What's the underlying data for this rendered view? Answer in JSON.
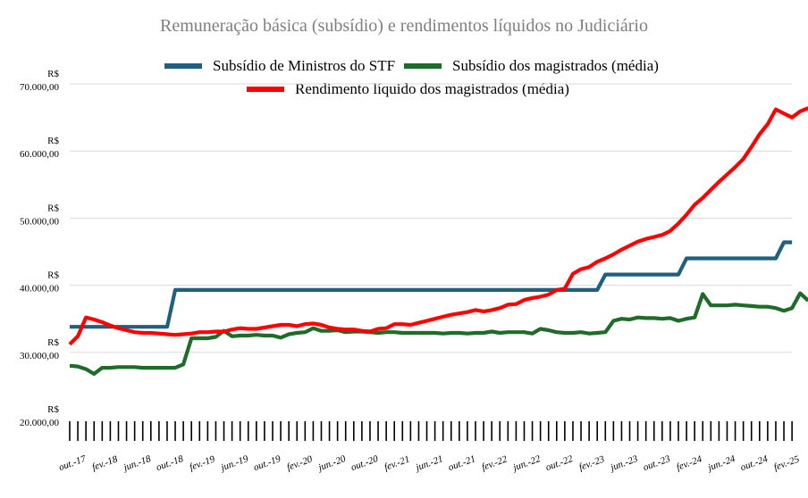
{
  "chart_data": {
    "type": "line",
    "title": "Remuneração básica (subsídio) e rendimentos líquidos no  Judiciário",
    "xlabel": "",
    "ylabel": "",
    "ylim": [
      20000,
      70000
    ],
    "y_ticks": [
      {
        "value": 70000,
        "currency": "R$",
        "amount": "70.000,00"
      },
      {
        "value": 60000,
        "currency": "R$",
        "amount": "60.000,00"
      },
      {
        "value": 50000,
        "currency": "R$",
        "amount": "50.000,00"
      },
      {
        "value": 40000,
        "currency": "R$",
        "amount": "40.000,00"
      },
      {
        "value": 30000,
        "currency": "R$",
        "amount": "30.000,00"
      },
      {
        "value": 20000,
        "currency": "R$",
        "amount": "20.000,00"
      }
    ],
    "x_ticks": [
      {
        "i": 0,
        "label": "out.-17"
      },
      {
        "i": 4,
        "label": "fev.-18"
      },
      {
        "i": 8,
        "label": "jun.-18"
      },
      {
        "i": 12,
        "label": "out.-18"
      },
      {
        "i": 16,
        "label": "fev.-19"
      },
      {
        "i": 20,
        "label": "jun.-19"
      },
      {
        "i": 24,
        "label": "out.-19"
      },
      {
        "i": 28,
        "label": "fev.-20"
      },
      {
        "i": 32,
        "label": "jun.-20"
      },
      {
        "i": 36,
        "label": "out.-20"
      },
      {
        "i": 40,
        "label": "fev.-21"
      },
      {
        "i": 44,
        "label": "jun.-21"
      },
      {
        "i": 48,
        "label": "out.-21"
      },
      {
        "i": 52,
        "label": "fev.-22"
      },
      {
        "i": 56,
        "label": "jun.-22"
      },
      {
        "i": 60,
        "label": "out.-22"
      },
      {
        "i": 64,
        "label": "fev.-23"
      },
      {
        "i": 68,
        "label": "jun.-23"
      },
      {
        "i": 72,
        "label": "out.-23"
      },
      {
        "i": 76,
        "label": "fev.-24"
      },
      {
        "i": 80,
        "label": "jun.-24"
      },
      {
        "i": 84,
        "label": "out.-24"
      },
      {
        "i": 88,
        "label": "fev.-25"
      }
    ],
    "grid": true,
    "legend_position": "top",
    "series": [
      {
        "name": "Subsídio de Ministros do STF",
        "color": "#1f5f7f",
        "values": [
          33800,
          33800,
          33800,
          33800,
          33800,
          33800,
          33800,
          33800,
          33800,
          33800,
          33800,
          33800,
          33800,
          39300,
          39300,
          39300,
          39300,
          39300,
          39300,
          39300,
          39300,
          39300,
          39300,
          39300,
          39300,
          39300,
          39300,
          39300,
          39300,
          39300,
          39300,
          39300,
          39300,
          39300,
          39300,
          39300,
          39300,
          39300,
          39300,
          39300,
          39300,
          39300,
          39300,
          39300,
          39300,
          39300,
          39300,
          39300,
          39300,
          39300,
          39300,
          39300,
          39300,
          39300,
          39300,
          39300,
          39300,
          39300,
          39300,
          39300,
          39300,
          39300,
          39300,
          39300,
          39300,
          39300,
          41600,
          41600,
          41600,
          41600,
          41600,
          41600,
          41600,
          41600,
          41600,
          41600,
          44000,
          44000,
          44000,
          44000,
          44000,
          44000,
          44000,
          44000,
          44000,
          44000,
          44000,
          44000,
          46400,
          46400
        ]
      },
      {
        "name": "Subsídio dos magistrados (média)",
        "color": "#1e6b2a",
        "values": [
          28000,
          27900,
          27500,
          26800,
          27700,
          27700,
          27800,
          27800,
          27800,
          27700,
          27700,
          27700,
          27700,
          27700,
          28200,
          32100,
          32100,
          32100,
          32300,
          33200,
          32400,
          32500,
          32500,
          32600,
          32500,
          32500,
          32200,
          32700,
          32900,
          33000,
          33600,
          33200,
          33200,
          33300,
          33000,
          33100,
          33100,
          33000,
          32900,
          33000,
          33000,
          32900,
          32900,
          32900,
          32900,
          32900,
          32800,
          32900,
          32900,
          32800,
          32900,
          32900,
          33100,
          32900,
          33000,
          33000,
          33000,
          32800,
          33500,
          33300,
          33000,
          32900,
          32900,
          33000,
          32800,
          32900,
          33000,
          34700,
          35000,
          34900,
          35200,
          35100,
          35100,
          35000,
          35100,
          34700,
          35000,
          35200,
          38700,
          37000,
          37000,
          37000,
          37100,
          37000,
          36900,
          36800,
          36800,
          36600,
          36200,
          36600,
          38800,
          37700
        ]
      },
      {
        "name": "Rendimento líquido dos magistrados (média)",
        "color": "#ff0000",
        "values": [
          31200,
          32400,
          35200,
          34900,
          34500,
          34000,
          33600,
          33300,
          33000,
          32900,
          32900,
          32800,
          32700,
          32600,
          32700,
          32800,
          33000,
          33000,
          33100,
          33100,
          33400,
          33600,
          33500,
          33500,
          33700,
          33900,
          34100,
          34100,
          33900,
          34200,
          34300,
          34100,
          33700,
          33500,
          33400,
          33400,
          33200,
          33100,
          33500,
          33600,
          34200,
          34200,
          34100,
          34400,
          34700,
          35000,
          35300,
          35600,
          35800,
          36000,
          36300,
          36100,
          36300,
          36600,
          37100,
          37200,
          37800,
          38100,
          38300,
          38600,
          39300,
          39500,
          41700,
          42400,
          42700,
          43500,
          44000,
          44600,
          45300,
          45900,
          46500,
          46900,
          47200,
          47500,
          48100,
          49200,
          50500,
          52000,
          53000,
          54200,
          55400,
          56500,
          57600,
          58800,
          60600,
          62500,
          64000,
          66200,
          65600,
          65000,
          65900,
          66400
        ]
      }
    ]
  }
}
